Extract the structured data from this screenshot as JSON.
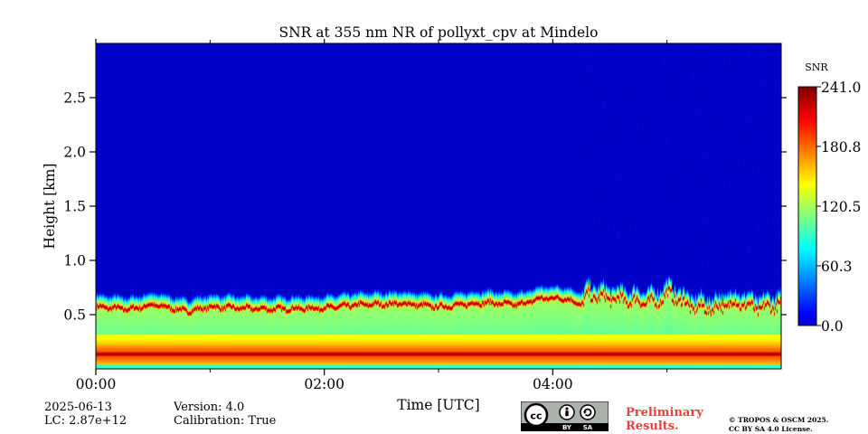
{
  "chart_data": {
    "type": "heatmap",
    "title": "SNR at 355 nm NR of pollyxt_cpv at Mindelo",
    "xlabel": "Time [UTC]",
    "ylabel": "Height [km]",
    "xlim_hours": [
      0,
      6
    ],
    "ylim_km": [
      0,
      3.0
    ],
    "x_ticks": [
      {
        "value": 0,
        "label": "00:00"
      },
      {
        "value": 2,
        "label": "02:00"
      },
      {
        "value": 4,
        "label": "04:00"
      }
    ],
    "x_minor_ticks": [
      1,
      3,
      5
    ],
    "y_ticks": [
      {
        "value": 0.5,
        "label": "0.5"
      },
      {
        "value": 1.0,
        "label": "1.0"
      },
      {
        "value": 1.5,
        "label": "1.5"
      },
      {
        "value": 2.0,
        "label": "2.0"
      },
      {
        "value": 2.5,
        "label": "2.5"
      }
    ],
    "colorbar": {
      "label": "SNR",
      "range": [
        0.0,
        241.0
      ],
      "ticks": [
        {
          "value": 0.0,
          "label": "0.0"
        },
        {
          "value": 60.3,
          "label": "60.3"
        },
        {
          "value": 120.5,
          "label": "120.5"
        },
        {
          "value": 180.8,
          "label": "180.8"
        },
        {
          "value": 241.0,
          "label": "241.0"
        }
      ],
      "colormap": "jet"
    },
    "features": {
      "surface_layer_center_km": 0.14,
      "surface_layer_snr": 225,
      "layer_top_km": [
        {
          "t": 0.0,
          "h": 0.62
        },
        {
          "t": 0.3,
          "h": 0.6
        },
        {
          "t": 0.5,
          "h": 0.64
        },
        {
          "t": 0.8,
          "h": 0.58
        },
        {
          "t": 1.0,
          "h": 0.62
        },
        {
          "t": 1.5,
          "h": 0.6
        },
        {
          "t": 2.0,
          "h": 0.61
        },
        {
          "t": 2.3,
          "h": 0.64
        },
        {
          "t": 2.7,
          "h": 0.65
        },
        {
          "t": 3.0,
          "h": 0.62
        },
        {
          "t": 3.4,
          "h": 0.66
        },
        {
          "t": 3.7,
          "h": 0.64
        },
        {
          "t": 3.9,
          "h": 0.7
        },
        {
          "t": 4.1,
          "h": 0.7
        },
        {
          "t": 4.25,
          "h": 0.64
        },
        {
          "t": 4.3,
          "h": 0.72
        },
        {
          "t": 4.6,
          "h": 0.68
        },
        {
          "t": 4.9,
          "h": 0.66
        },
        {
          "t": 5.0,
          "h": 0.74
        },
        {
          "t": 5.2,
          "h": 0.62
        },
        {
          "t": 5.4,
          "h": 0.6
        },
        {
          "t": 5.6,
          "h": 0.66
        },
        {
          "t": 5.8,
          "h": 0.6
        },
        {
          "t": 6.0,
          "h": 0.64
        }
      ],
      "layer_peak_snr": 230,
      "background_snr": 0
    }
  },
  "info": {
    "date": "2025-06-13",
    "lc": "LC: 2.87e+12",
    "version": "Version: 4.0",
    "calibration": "Calibration: True"
  },
  "license": {
    "badge_cc": "cc",
    "badge_by": "BY",
    "badge_sa": "SA",
    "preliminary_line1": "Preliminary",
    "preliminary_line2": "Results.",
    "copyright_line1": "© TROPOS & OSCM 2025.",
    "copyright_line2": "CC BY SA 4.0 License."
  },
  "colors": {
    "background_blue": "#0046dc",
    "preliminary": "#e8403a"
  }
}
